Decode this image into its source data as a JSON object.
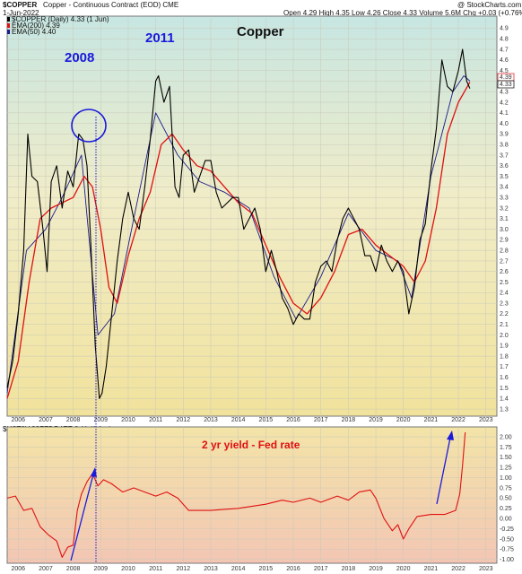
{
  "header": {
    "symbol": "$COPPER",
    "description": "Copper - Continuous Contract (EOD) CME",
    "date": "1-Jun-2022",
    "ohlc": "Open 4.29  High 4.35  Low 4.26  Close 4.33  Volume 5.6M  Chg +0.03 (+0.76%)",
    "watermark": "@ StockCharts.com"
  },
  "legend_top": [
    {
      "text": "$COPPER (Daily) 4.33 (1 Jun)",
      "color": "#000000"
    },
    {
      "text": "EMA(200) 4.39",
      "color": "#e01010"
    },
    {
      "text": "EMA(50) 4.40",
      "color": "#1a1a8a"
    }
  ],
  "legend_bottom": {
    "text": "$UST2Y-$$FEDRATE 2.11 (1 Apr)",
    "color": "#e01010"
  },
  "annotations": {
    "label_2008": "2008",
    "label_2011": "2011",
    "title": "Copper",
    "yield_title": "2 yr yield - Fed rate"
  },
  "price_badges": [
    "4.39",
    "4.33"
  ],
  "colors": {
    "price": "#000000",
    "ema200": "#e01010",
    "ema50": "#1a1a8a",
    "spread": "#e01010",
    "annotation_blue": "#1a1adc",
    "annotation_red": "#e01010"
  },
  "chart_data": [
    {
      "type": "line",
      "title": "Copper",
      "x_label_ticks": [
        "2006",
        "2007",
        "2008",
        "2009",
        "2010",
        "2011",
        "2012",
        "2013",
        "2014",
        "2015",
        "2016",
        "2017",
        "2018",
        "2019",
        "2020",
        "2021",
        "2022",
        "2023"
      ],
      "xlim": [
        2005.6,
        2023.4
      ],
      "ylim": [
        1.25,
        4.98
      ],
      "y_ticks": [
        1.3,
        1.4,
        1.5,
        1.6,
        1.7,
        1.8,
        1.9,
        2.0,
        2.1,
        2.2,
        2.3,
        2.4,
        2.5,
        2.6,
        2.7,
        2.8,
        2.9,
        3.0,
        3.1,
        3.2,
        3.3,
        3.4,
        3.5,
        3.6,
        3.7,
        3.8,
        3.9,
        4.0,
        4.1,
        4.2,
        4.3,
        4.4,
        4.5,
        4.6,
        4.7,
        4.8,
        4.9
      ],
      "series": [
        {
          "name": "$COPPER (Daily) 4.33 (1 Jun)",
          "x": [
            2005.6,
            2005.8,
            2006.0,
            2006.2,
            2006.35,
            2006.5,
            2006.7,
            2006.9,
            2007.05,
            2007.2,
            2007.4,
            2007.6,
            2007.8,
            2008.0,
            2008.2,
            2008.35,
            2008.5,
            2008.65,
            2008.8,
            2008.95,
            2009.05,
            2009.2,
            2009.4,
            2009.6,
            2009.8,
            2010.0,
            2010.2,
            2010.4,
            2010.6,
            2010.8,
            2011.0,
            2011.1,
            2011.3,
            2011.5,
            2011.7,
            2011.85,
            2012.0,
            2012.2,
            2012.4,
            2012.6,
            2012.8,
            2013.0,
            2013.2,
            2013.4,
            2013.6,
            2013.8,
            2014.0,
            2014.2,
            2014.4,
            2014.6,
            2014.8,
            2015.0,
            2015.2,
            2015.4,
            2015.6,
            2015.8,
            2016.0,
            2016.2,
            2016.4,
            2016.6,
            2016.8,
            2017.0,
            2017.2,
            2017.4,
            2017.6,
            2017.8,
            2018.0,
            2018.2,
            2018.4,
            2018.6,
            2018.8,
            2019.0,
            2019.2,
            2019.4,
            2019.6,
            2019.8,
            2020.0,
            2020.2,
            2020.4,
            2020.6,
            2020.8,
            2021.0,
            2021.2,
            2021.4,
            2021.6,
            2021.8,
            2022.0,
            2022.15,
            2022.3,
            2022.42
          ],
          "y": [
            1.5,
            1.75,
            2.2,
            2.8,
            3.9,
            3.5,
            3.45,
            3.0,
            2.6,
            3.45,
            3.6,
            3.2,
            3.55,
            3.4,
            3.9,
            3.85,
            3.6,
            2.8,
            1.9,
            1.4,
            1.45,
            1.7,
            2.2,
            2.7,
            3.1,
            3.35,
            3.1,
            3.0,
            3.4,
            3.85,
            4.4,
            4.45,
            4.2,
            4.35,
            3.4,
            3.3,
            3.7,
            3.75,
            3.35,
            3.5,
            3.65,
            3.65,
            3.35,
            3.2,
            3.25,
            3.3,
            3.3,
            3.0,
            3.1,
            3.2,
            3.0,
            2.6,
            2.8,
            2.6,
            2.35,
            2.25,
            2.1,
            2.2,
            2.15,
            2.15,
            2.5,
            2.65,
            2.7,
            2.6,
            2.9,
            3.1,
            3.2,
            3.1,
            3.0,
            2.75,
            2.75,
            2.6,
            2.85,
            2.7,
            2.6,
            2.7,
            2.6,
            2.2,
            2.45,
            2.9,
            3.05,
            3.55,
            3.95,
            4.6,
            4.35,
            4.3,
            4.5,
            4.7,
            4.4,
            4.33
          ]
        },
        {
          "name": "EMA(200) 4.39",
          "x": [
            2005.6,
            2006.0,
            2006.4,
            2006.8,
            2007.2,
            2007.6,
            2008.0,
            2008.4,
            2008.7,
            2009.0,
            2009.3,
            2009.6,
            2010.0,
            2010.4,
            2010.8,
            2011.2,
            2011.6,
            2012.0,
            2012.5,
            2013.0,
            2013.5,
            2014.0,
            2014.5,
            2015.0,
            2015.5,
            2016.0,
            2016.5,
            2017.0,
            2017.5,
            2018.0,
            2018.5,
            2019.0,
            2019.5,
            2020.0,
            2020.4,
            2020.8,
            2021.2,
            2021.6,
            2022.0,
            2022.42
          ],
          "y": [
            1.4,
            1.75,
            2.5,
            3.1,
            3.2,
            3.25,
            3.3,
            3.5,
            3.4,
            3.0,
            2.45,
            2.3,
            2.75,
            3.1,
            3.35,
            3.8,
            3.9,
            3.75,
            3.6,
            3.55,
            3.4,
            3.25,
            3.15,
            2.85,
            2.55,
            2.3,
            2.2,
            2.35,
            2.6,
            2.95,
            3.0,
            2.85,
            2.75,
            2.65,
            2.5,
            2.7,
            3.2,
            3.9,
            4.2,
            4.39
          ]
        },
        {
          "name": "EMA(50) 4.40",
          "x": [
            2005.6,
            2006.3,
            2007.0,
            2007.6,
            2008.3,
            2008.9,
            2009.5,
            2010.2,
            2011.0,
            2011.8,
            2012.6,
            2013.5,
            2014.4,
            2015.3,
            2016.1,
            2017.0,
            2018.0,
            2019.0,
            2019.8,
            2020.3,
            2021.0,
            2021.8,
            2022.2,
            2022.42
          ],
          "y": [
            1.45,
            2.8,
            3.0,
            3.3,
            3.7,
            2.0,
            2.2,
            3.1,
            4.1,
            3.7,
            3.45,
            3.35,
            3.2,
            2.55,
            2.15,
            2.55,
            3.15,
            2.8,
            2.7,
            2.35,
            3.5,
            4.3,
            4.45,
            4.4
          ]
        }
      ]
    },
    {
      "type": "line",
      "title": "2 yr yield - Fed rate",
      "x_label_ticks": [
        "2006",
        "2007",
        "2008",
        "2009",
        "2010",
        "2011",
        "2012",
        "2013",
        "2014",
        "2015",
        "2016",
        "2017",
        "2018",
        "2019",
        "2020",
        "2021",
        "2022",
        "2023"
      ],
      "xlim": [
        2005.6,
        2023.4
      ],
      "ylim": [
        -1.05,
        2.2
      ],
      "y_ticks": [
        -1.0,
        -0.75,
        -0.5,
        -0.25,
        0.0,
        0.25,
        0.5,
        0.75,
        1.0,
        1.25,
        1.5,
        1.75,
        2.0
      ],
      "series": [
        {
          "name": "$UST2Y-$$FEDRATE 2.11 (1 Apr)",
          "x": [
            2005.6,
            2005.9,
            2006.2,
            2006.5,
            2006.8,
            2007.1,
            2007.4,
            2007.6,
            2007.8,
            2008.0,
            2008.15,
            2008.3,
            2008.5,
            2008.7,
            2008.9,
            2009.1,
            2009.4,
            2009.8,
            2010.2,
            2010.6,
            2011.0,
            2011.4,
            2011.8,
            2012.2,
            2013.0,
            2014.0,
            2015.0,
            2015.6,
            2016.0,
            2016.6,
            2017.0,
            2017.6,
            2018.0,
            2018.4,
            2018.8,
            2019.0,
            2019.3,
            2019.6,
            2019.8,
            2020.0,
            2020.2,
            2020.5,
            2021.0,
            2021.5,
            2021.9,
            2022.05,
            2022.15,
            2022.25
          ],
          "y": [
            0.5,
            0.55,
            0.2,
            0.25,
            -0.2,
            -0.4,
            -0.55,
            -0.95,
            -0.7,
            -0.65,
            0.2,
            0.6,
            0.9,
            1.1,
            0.8,
            0.95,
            0.85,
            0.65,
            0.75,
            0.65,
            0.55,
            0.65,
            0.5,
            0.2,
            0.2,
            0.25,
            0.35,
            0.45,
            0.4,
            0.5,
            0.4,
            0.55,
            0.45,
            0.65,
            0.7,
            0.5,
            0.0,
            -0.3,
            -0.15,
            -0.5,
            -0.25,
            0.05,
            0.1,
            0.1,
            0.2,
            0.6,
            1.3,
            2.11
          ]
        }
      ]
    }
  ]
}
